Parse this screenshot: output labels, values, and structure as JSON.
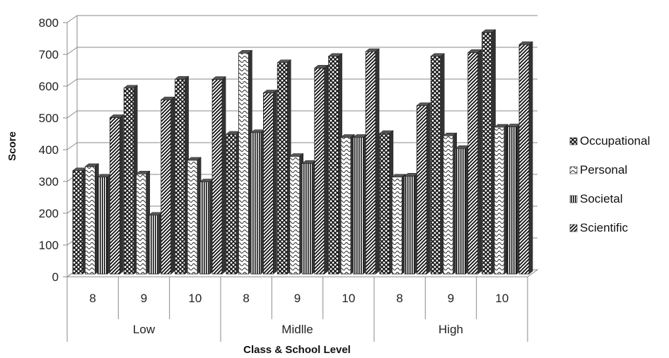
{
  "chart_data": {
    "type": "bar",
    "title": "",
    "xlabel": "Class & School Level",
    "ylabel": "Score",
    "ylim": [
      0,
      800
    ],
    "yticks": [
      "0",
      "100",
      "200",
      "300",
      "400",
      "500",
      "600",
      "700",
      "800"
    ],
    "grid": true,
    "legend_position": "right",
    "groups": [
      {
        "label": "Low",
        "classes": [
          "8",
          "9",
          "10"
        ]
      },
      {
        "label": "Midlle",
        "classes": [
          "8",
          "9",
          "10"
        ]
      },
      {
        "label": "High",
        "classes": [
          "8",
          "9",
          "10"
        ]
      }
    ],
    "categories": [
      "Low 8",
      "Low 9",
      "Low 10",
      "Midlle 8",
      "Midlle 9",
      "Midlle 10",
      "High 8",
      "High 9",
      "High 10"
    ],
    "series": [
      {
        "name": "Occupational",
        "pattern": "crosshatch",
        "values": [
          325,
          585,
          613,
          440,
          665,
          685,
          442,
          685,
          760
        ]
      },
      {
        "name": "Personal",
        "pattern": "wave",
        "values": [
          338,
          315,
          358,
          695,
          370,
          430,
          305,
          435,
          462
        ]
      },
      {
        "name": "Societal",
        "pattern": "vertical",
        "values": [
          305,
          185,
          290,
          445,
          348,
          430,
          308,
          395,
          463
        ]
      },
      {
        "name": "Scientific",
        "pattern": "diagonal",
        "values": [
          492,
          548,
          612,
          570,
          648,
          700,
          530,
          697,
          722
        ]
      }
    ]
  }
}
